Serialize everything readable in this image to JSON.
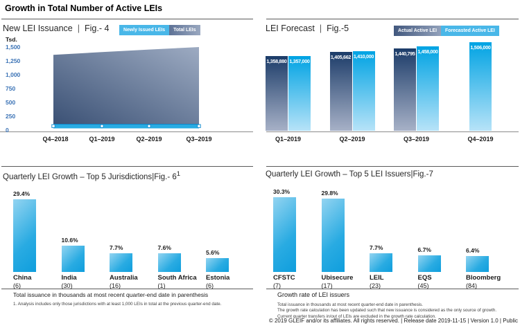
{
  "page": {
    "title": "Growth in Total Number of Active LEIs",
    "footer": "© 2019 GLEIF and/or its affiliates. All rights reserved. | Release date 2019-11-15 | Version 1.0 | Public"
  },
  "colors": {
    "accent_blue": "#29abe2",
    "dark_navy": "#1c3c69",
    "steel_blue": "#9aa8c0",
    "tick_blue": "#3a72b5"
  },
  "chart_data": [
    {
      "id": "fig4",
      "type": "area",
      "title": "New LEI Issuance",
      "fig_label": "Fig.- 4",
      "separator": "|",
      "ylabel": "Tsd.",
      "ylim": [
        0,
        1500
      ],
      "y_ticks": [
        0,
        250,
        500,
        750,
        1000,
        1250,
        1500
      ],
      "y_tick_labels": [
        "0",
        "250",
        "500",
        "750",
        "1,000",
        "1,250",
        "1,500"
      ],
      "x": [
        "Q4–2018",
        "Q1–2019",
        "Q2–2019",
        "Q3–2019"
      ],
      "legend": [
        {
          "name": "Newly Issued LEIs",
          "color": "#49b7e8"
        },
        {
          "name": "Total LEIs",
          "color": "gradient-steel"
        }
      ],
      "series": [
        {
          "name": "Newly Issued LEIs",
          "values": [
            60,
            60,
            60,
            60
          ]
        },
        {
          "name": "Total LEIs",
          "values": [
            1359,
            1410,
            1455,
            1500
          ]
        }
      ],
      "grid": false,
      "legend_position": "top-right"
    },
    {
      "id": "fig5",
      "type": "bar",
      "title": "LEI Forecast",
      "fig_label": "Fig.-5",
      "separator": "|",
      "categories": [
        "Q1–2019",
        "Q2–2019",
        "Q3–2019",
        "Q4–2019"
      ],
      "legend": [
        {
          "name": "Actual Active LEI",
          "color": "gradient-navy"
        },
        {
          "name": "Forecasted Active LEI",
          "color": "#49b7e8"
        }
      ],
      "series": [
        {
          "name": "Actual Active LEI",
          "values": [
            1358880,
            1405662,
            1440795,
            null
          ],
          "labels": [
            "1,358,880",
            "1,405,662",
            "1,440,795",
            null
          ]
        },
        {
          "name": "Forecasted Active LEI",
          "values": [
            1357000,
            1410000,
            1458000,
            1506000
          ],
          "labels": [
            "1,357,000",
            "1,410,000",
            "1,458,000",
            "1,506,000"
          ]
        }
      ],
      "grid": false,
      "legend_position": "top-right"
    },
    {
      "id": "fig6",
      "type": "bar",
      "title": "Quarterly LEI Growth – Top 5 Jurisdictions",
      "fig_label": "Fig.- 6",
      "fig_superscript": "1",
      "separator": "|",
      "categories": [
        "China",
        "India",
        "Australia",
        "South Africa",
        "Estonia"
      ],
      "counts": [
        "(6)",
        "(30)",
        "(16)",
        "(1)",
        "(6)"
      ],
      "values": [
        29.4,
        10.6,
        7.7,
        7.6,
        5.6
      ],
      "value_labels": [
        "29.4%",
        "10.6%",
        "7.7%",
        "7.6%",
        "5.6%"
      ],
      "note": "Total issuance in thousands at most recent quarter-end date in parenthesis",
      "footnote": "1. Analysis includes only those jurisdictions with at least 1,000 LEIs in total at the previous quarter-end date."
    },
    {
      "id": "fig7",
      "type": "bar",
      "title": "Quarterly LEI Growth – Top 5 LEI Issuers",
      "fig_label": "Fig.-7",
      "separator": "|",
      "categories": [
        "CFSTC",
        "Ubisecure",
        "LEIL",
        "EQS",
        "Bloomberg"
      ],
      "counts": [
        "(7)",
        "(17)",
        "(23)",
        "(45)",
        "(84)"
      ],
      "values": [
        30.3,
        29.8,
        7.7,
        6.7,
        6.4
      ],
      "value_labels": [
        "30.3%",
        "29.8%",
        "7.7%",
        "6.7%",
        "6.4%"
      ],
      "note_title": "Growth rate of LEI issuers",
      "notes": [
        "Total issuance in thousands at most recent quarter-end date in parenthesis.",
        "The growth rate calculation has been updated such that new issuance is considered as the only source of growth. Current quarter transfers in/out of LEIs are excluded in the growth rate calculation."
      ]
    }
  ]
}
